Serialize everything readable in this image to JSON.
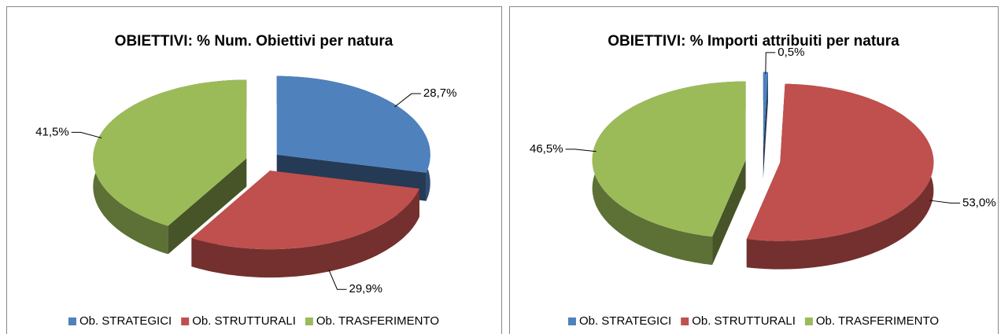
{
  "chart_data": [
    {
      "type": "pie",
      "title": "OBIETTIVI: % Num. Obiettivi per natura",
      "categories": [
        "Ob. STRATEGICI",
        "Ob. STRUTTURALI",
        "Ob. TRASFERIMENTO"
      ],
      "values": [
        28.7,
        29.9,
        41.5
      ],
      "value_labels": [
        "28,7%",
        "29,9%",
        "41,5%"
      ],
      "colors": [
        "#4f81bd",
        "#c0504d",
        "#9bbb59"
      ],
      "legend": "bottom"
    },
    {
      "type": "pie",
      "title": "OBIETTIVI: % Importi attribuiti per natura",
      "categories": [
        "Ob. STRATEGICI",
        "Ob. STRUTTURALI",
        "Ob. TRASFERIMENTO"
      ],
      "values": [
        0.5,
        53.0,
        46.5
      ],
      "value_labels": [
        "0,5%",
        "53,0%",
        "46,5%"
      ],
      "colors": [
        "#4f81bd",
        "#c0504d",
        "#9bbb59"
      ],
      "legend": "bottom"
    }
  ]
}
